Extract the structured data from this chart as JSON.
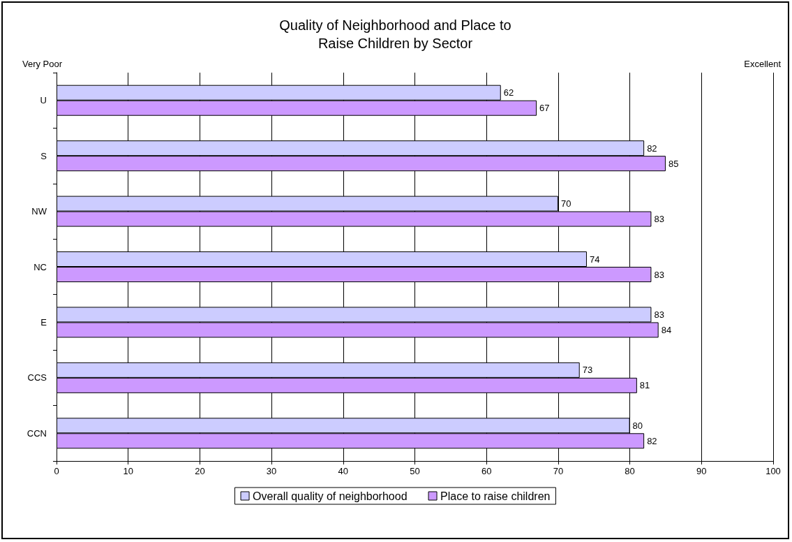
{
  "chart_data": {
    "type": "bar",
    "orientation": "horizontal",
    "title": "Quality of Neighborhood and Place to\nRaise Children by Sector",
    "categories": [
      "U",
      "S",
      "NW",
      "NC",
      "E",
      "CCS",
      "CCN"
    ],
    "series": [
      {
        "name": "Overall quality of neighborhood",
        "color": "#ccccff",
        "values": [
          62,
          82,
          70,
          74,
          83,
          73,
          80
        ]
      },
      {
        "name": "Place to raise children",
        "color": "#cc99ff",
        "values": [
          67,
          85,
          83,
          83,
          84,
          81,
          82
        ]
      }
    ],
    "xlim": [
      0,
      100
    ],
    "xticks": [
      0,
      10,
      20,
      30,
      40,
      50,
      60,
      70,
      80,
      90,
      100
    ],
    "grid": "x",
    "legend": "bottom",
    "data_labels": true,
    "annotations": [
      "Very Poor",
      "Excellent"
    ]
  }
}
